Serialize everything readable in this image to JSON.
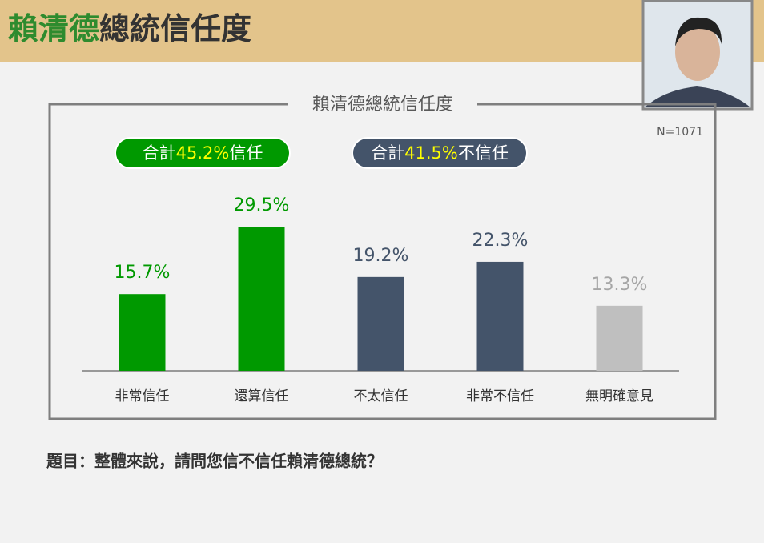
{
  "header": {
    "title_name": "賴清德",
    "title_rest": "總統信任度"
  },
  "chart_data": {
    "type": "bar",
    "title": "賴清德總統信任度",
    "note": "N=1071",
    "badges": [
      {
        "prefix": "合計",
        "value": "45.2%",
        "suffix": "信任",
        "color": "#009900"
      },
      {
        "prefix": "合計",
        "value": "41.5%",
        "suffix": "不信任",
        "color": "#44546a"
      }
    ],
    "categories": [
      "非常信任",
      "還算信任",
      "不太信任",
      "非常不信任",
      "無明確意見"
    ],
    "values": [
      15.7,
      29.5,
      19.2,
      22.3,
      13.3
    ],
    "value_labels": [
      "15.7%",
      "29.5%",
      "19.2%",
      "22.3%",
      "13.3%"
    ],
    "colors": [
      "#009900",
      "#009900",
      "#44546a",
      "#44546a",
      "#bfbfbf"
    ],
    "label_colors": [
      "#009900",
      "#009900",
      "#44546a",
      "#44546a",
      "#a6a6a6"
    ]
  },
  "footer": {
    "question": "題目：整體來說，請問您信不信任賴清德總統？"
  }
}
